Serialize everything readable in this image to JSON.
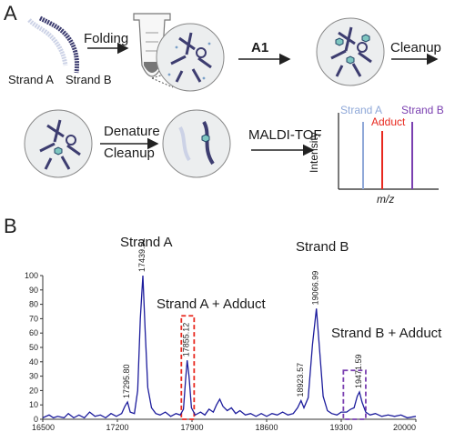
{
  "panel_a": {
    "letter": "A",
    "strand_a": "Strand A",
    "strand_b": "Strand B",
    "folding": "Folding",
    "a1": "A1",
    "cleanup1": "Cleanup",
    "denature": "Denature",
    "cleanup2": "Cleanup",
    "maldi": "MALDI-TOF",
    "mini_chart": {
      "strand_a": "Strand A",
      "adduct": "Adduct",
      "strand_b": "Strand B",
      "ylabel": "Intensity",
      "xlabel": "m/z",
      "colors": {
        "strand_a": "#8fa8d8",
        "adduct": "#e8281e",
        "strand_b": "#7a3fb0"
      }
    }
  },
  "panel_b": {
    "letter": "B",
    "chart_data": {
      "type": "line",
      "xlim": [
        16500,
        20000
      ],
      "ylim": [
        0,
        100
      ],
      "x_ticks": [
        "16500",
        "17200",
        "17900",
        "18600",
        "19300",
        "20000"
      ],
      "y_ticks": [
        "0",
        "10",
        "20",
        "30",
        "40",
        "50",
        "60",
        "70",
        "80",
        "90",
        "100"
      ],
      "series_color": "#1c1c9c",
      "peak_labels": [
        {
          "text": "17295.80",
          "x": 17295.8,
          "y": 12
        },
        {
          "text": "17439.51",
          "x": 17439.5,
          "y": 100
        },
        {
          "text": "17855.12",
          "x": 17855.1,
          "y": 41
        },
        {
          "text": "18923.57",
          "x": 18923.6,
          "y": 13
        },
        {
          "text": "19066.99",
          "x": 19067.0,
          "y": 77
        },
        {
          "text": "19471.59",
          "x": 19471.6,
          "y": 19
        }
      ],
      "annotations": [
        "Strand A",
        "Strand A + Adduct",
        "Strand B",
        "Strand B + Adduct"
      ],
      "boxes": [
        {
          "x": [
            17800,
            17920
          ],
          "y": [
            0,
            72
          ],
          "color": "#e8281e"
        },
        {
          "x": [
            19320,
            19530
          ],
          "y": [
            0,
            34
          ],
          "color": "#7a3fb0"
        }
      ],
      "points": [
        [
          16500,
          1
        ],
        [
          16560,
          3
        ],
        [
          16600,
          1
        ],
        [
          16640,
          2
        ],
        [
          16700,
          1
        ],
        [
          16740,
          4
        ],
        [
          16790,
          1
        ],
        [
          16840,
          3
        ],
        [
          16890,
          1
        ],
        [
          16940,
          5
        ],
        [
          16990,
          2
        ],
        [
          17040,
          3
        ],
        [
          17090,
          1
        ],
        [
          17140,
          4
        ],
        [
          17190,
          2
        ],
        [
          17240,
          4
        ],
        [
          17270,
          9
        ],
        [
          17295,
          12
        ],
        [
          17320,
          5
        ],
        [
          17360,
          4
        ],
        [
          17390,
          20
        ],
        [
          17415,
          70
        ],
        [
          17439,
          100
        ],
        [
          17460,
          62
        ],
        [
          17485,
          22
        ],
        [
          17520,
          8
        ],
        [
          17560,
          4
        ],
        [
          17600,
          3
        ],
        [
          17650,
          5
        ],
        [
          17700,
          2
        ],
        [
          17750,
          4
        ],
        [
          17790,
          3
        ],
        [
          17820,
          7
        ],
        [
          17840,
          28
        ],
        [
          17855,
          41
        ],
        [
          17872,
          30
        ],
        [
          17895,
          8
        ],
        [
          17930,
          3
        ],
        [
          17980,
          5
        ],
        [
          18020,
          3
        ],
        [
          18060,
          7
        ],
        [
          18100,
          5
        ],
        [
          18130,
          10
        ],
        [
          18160,
          14
        ],
        [
          18190,
          9
        ],
        [
          18230,
          6
        ],
        [
          18270,
          8
        ],
        [
          18310,
          4
        ],
        [
          18350,
          6
        ],
        [
          18400,
          3
        ],
        [
          18450,
          4
        ],
        [
          18500,
          2
        ],
        [
          18550,
          4
        ],
        [
          18600,
          2
        ],
        [
          18650,
          4
        ],
        [
          18700,
          3
        ],
        [
          18750,
          5
        ],
        [
          18800,
          3
        ],
        [
          18850,
          4
        ],
        [
          18890,
          8
        ],
        [
          18923,
          13
        ],
        [
          18950,
          8
        ],
        [
          18990,
          15
        ],
        [
          19030,
          52
        ],
        [
          19067,
          77
        ],
        [
          19095,
          50
        ],
        [
          19130,
          16
        ],
        [
          19170,
          6
        ],
        [
          19210,
          4
        ],
        [
          19260,
          3
        ],
        [
          19300,
          5
        ],
        [
          19350,
          5
        ],
        [
          19390,
          7
        ],
        [
          19420,
          8
        ],
        [
          19450,
          16
        ],
        [
          19471,
          19
        ],
        [
          19495,
          12
        ],
        [
          19530,
          5
        ],
        [
          19570,
          3
        ],
        [
          19620,
          4
        ],
        [
          19680,
          2
        ],
        [
          19740,
          3
        ],
        [
          19800,
          2
        ],
        [
          19860,
          3
        ],
        [
          19920,
          1
        ],
        [
          20000,
          2
        ]
      ]
    }
  }
}
